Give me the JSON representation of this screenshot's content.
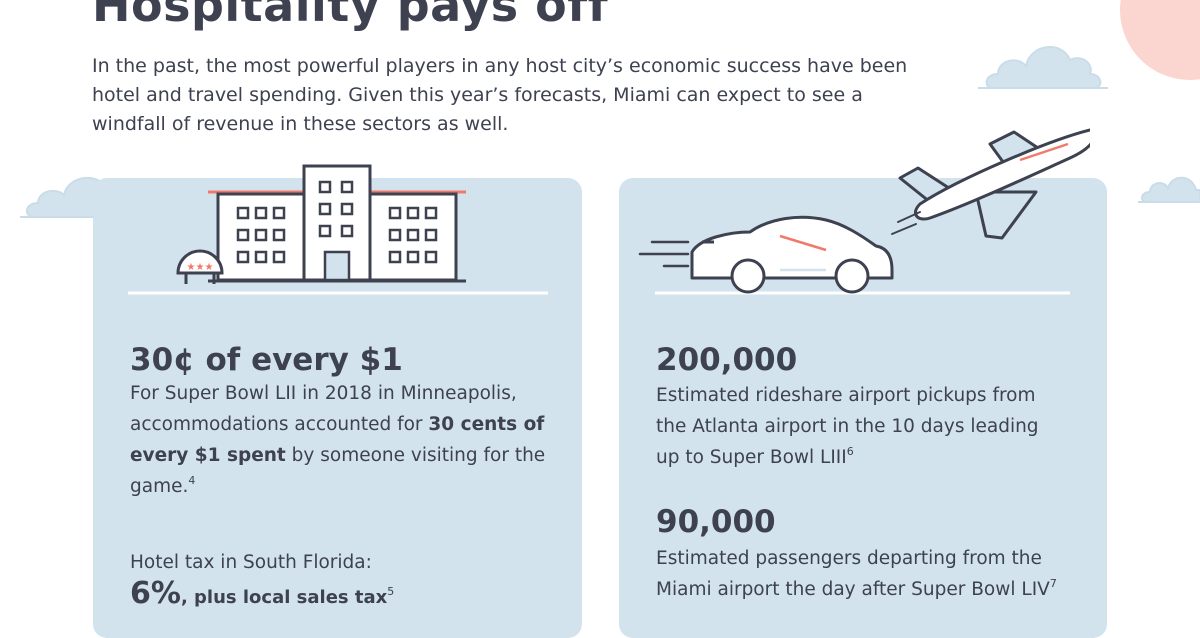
{
  "header": {
    "title": "Hospitality pays off",
    "intro": "In the past, the most powerful players in any host city’s economic success have been hotel and travel spending. Given this year’s forecasts, Miami can expect to see a windfall of revenue in these sectors as well."
  },
  "hotel_card": {
    "illustration": "hotel-icon",
    "sign_stars": "★★★",
    "stat_headline": "30¢ of every $1",
    "description_before": "For Super Bowl LII in 2018 in Minneapolis, accommodations accounted for ",
    "description_bold": "30 cents of every $1 spent",
    "description_after": " by someone visiting for the game.",
    "description_footnote": "4",
    "tax_label": "Hotel tax in South Florida:",
    "tax_value": "6%",
    "tax_rest": ", plus local sales tax",
    "tax_footnote": "5"
  },
  "travel_card": {
    "illustration": "car-and-airplane-icon",
    "stat1_value": "200,000",
    "stat1_description": "Estimated rideshare airport pickups from the Atlanta airport in the 10 days leading up to Super Bowl LIII",
    "stat1_footnote": "6",
    "stat2_value": "90,000",
    "stat2_description": "Estimated passengers departing from the Miami airport the day after Super Bowl LIV",
    "stat2_footnote": "7"
  },
  "colors": {
    "text": "#3d4150",
    "card_bg": "#d3e3ed",
    "accent_coral": "#f07a6a",
    "sun": "#fbd5d0",
    "cloud": "#c9dce8"
  }
}
